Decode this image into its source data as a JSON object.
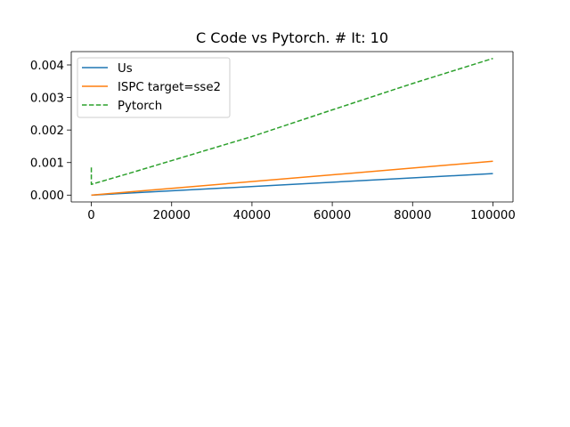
{
  "chart_data": {
    "type": "line",
    "title": "C Code vs Pytorch. # It: 10",
    "xlabel": "",
    "ylabel": "",
    "xlim": [
      -5000,
      105000
    ],
    "ylim": [
      -0.00021,
      0.00441
    ],
    "xticks": [
      0,
      20000,
      40000,
      60000,
      80000,
      100000
    ],
    "xtick_labels": [
      "0",
      "20000",
      "40000",
      "60000",
      "80000",
      "100000"
    ],
    "yticks": [
      0.0,
      0.001,
      0.002,
      0.003,
      0.004
    ],
    "ytick_labels": [
      "0.000",
      "0.001",
      "0.002",
      "0.003",
      "0.004"
    ],
    "grid": false,
    "legend_position": "top-left",
    "series": [
      {
        "name": "Us",
        "color": "#1f77b4",
        "dash": "solid",
        "x": [
          0,
          100000
        ],
        "y": [
          0.0,
          0.00066
        ]
      },
      {
        "name": "ISPC target=sse2",
        "color": "#ff7f0e",
        "dash": "solid",
        "x": [
          0,
          100000
        ],
        "y": [
          0.0,
          0.00104
        ]
      },
      {
        "name": "Pytorch",
        "color": "#2ca02c",
        "dash": "dashed",
        "x": [
          0,
          0,
          10000,
          20000,
          40000,
          60000,
          80000,
          100000
        ],
        "y": [
          0.00085,
          0.00033,
          0.00069,
          0.00106,
          0.0018,
          0.00262,
          0.00343,
          0.0042
        ]
      }
    ]
  }
}
